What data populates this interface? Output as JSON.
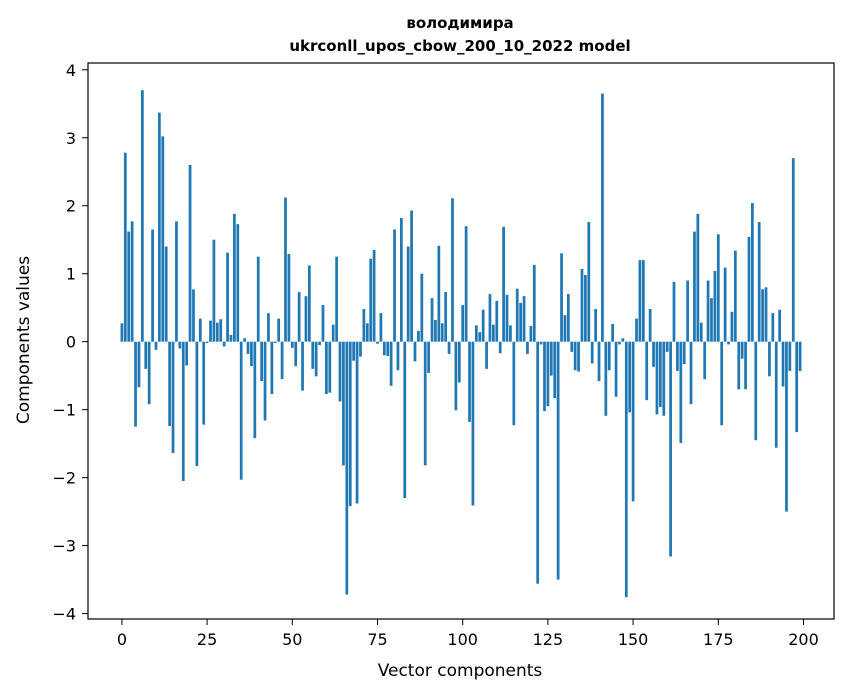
{
  "chart_data": {
    "type": "bar",
    "title_lines": [
      "володимира",
      "ukrconll_upos_cbow_200_10_2022 model"
    ],
    "xlabel": "Vector components",
    "ylabel": "Components values",
    "xlim": [
      -9.95,
      208.95
    ],
    "ylim": [
      -4.08,
      4.1
    ],
    "xticks": [
      0,
      25,
      50,
      75,
      100,
      125,
      150,
      175,
      200
    ],
    "xtick_labels": [
      "0",
      "25",
      "50",
      "75",
      "100",
      "125",
      "150",
      "175",
      "200"
    ],
    "yticks": [
      -4,
      -3,
      -2,
      -1,
      0,
      1,
      2,
      3,
      4
    ],
    "ytick_labels": [
      "−4",
      "−3",
      "−2",
      "−1",
      "0",
      "1",
      "2",
      "3",
      "4"
    ],
    "grid": false,
    "bar_color": "#1f77b4",
    "x": [
      0,
      1,
      2,
      3,
      4,
      5,
      6,
      7,
      8,
      9,
      10,
      11,
      12,
      13,
      14,
      15,
      16,
      17,
      18,
      19,
      20,
      21,
      22,
      23,
      24,
      25,
      26,
      27,
      28,
      29,
      30,
      31,
      32,
      33,
      34,
      35,
      36,
      37,
      38,
      39,
      40,
      41,
      42,
      43,
      44,
      45,
      46,
      47,
      48,
      49,
      50,
      51,
      52,
      53,
      54,
      55,
      56,
      57,
      58,
      59,
      60,
      61,
      62,
      63,
      64,
      65,
      66,
      67,
      68,
      69,
      70,
      71,
      72,
      73,
      74,
      75,
      76,
      77,
      78,
      79,
      80,
      81,
      82,
      83,
      84,
      85,
      86,
      87,
      88,
      89,
      90,
      91,
      92,
      93,
      94,
      95,
      96,
      97,
      98,
      99,
      100,
      101,
      102,
      103,
      104,
      105,
      106,
      107,
      108,
      109,
      110,
      111,
      112,
      113,
      114,
      115,
      116,
      117,
      118,
      119,
      120,
      121,
      122,
      123,
      124,
      125,
      126,
      127,
      128,
      129,
      130,
      131,
      132,
      133,
      134,
      135,
      136,
      137,
      138,
      139,
      140,
      141,
      142,
      143,
      144,
      145,
      146,
      147,
      148,
      149,
      150,
      151,
      152,
      153,
      154,
      155,
      156,
      157,
      158,
      159,
      160,
      161,
      162,
      163,
      164,
      165,
      166,
      167,
      168,
      169,
      170,
      171,
      172,
      173,
      174,
      175,
      176,
      177,
      178,
      179,
      180,
      181,
      182,
      183,
      184,
      185,
      186,
      187,
      188,
      189,
      190,
      191,
      192,
      193,
      194,
      195,
      196,
      197,
      198,
      199
    ],
    "values": [
      0.27,
      2.78,
      1.62,
      1.77,
      -1.25,
      -0.67,
      3.7,
      -0.4,
      -0.92,
      1.65,
      -0.12,
      3.37,
      3.02,
      1.4,
      -1.24,
      -1.64,
      1.77,
      -0.1,
      -2.05,
      -0.35,
      2.6,
      0.77,
      -1.83,
      0.34,
      -1.22,
      -0.02,
      0.31,
      1.5,
      0.28,
      0.33,
      -0.07,
      1.31,
      0.1,
      1.88,
      1.73,
      -2.03,
      0.05,
      -0.18,
      -0.36,
      -1.42,
      1.25,
      -0.58,
      -1.16,
      0.42,
      -0.77,
      -0.02,
      0.34,
      -0.55,
      2.12,
      1.29,
      -0.09,
      -0.36,
      0.73,
      -0.72,
      0.67,
      1.12,
      -0.4,
      -0.51,
      -0.05,
      0.54,
      -0.77,
      -0.75,
      0.25,
      1.25,
      -0.88,
      -1.82,
      -3.72,
      -2.42,
      -0.28,
      -2.38,
      -0.22,
      0.48,
      0.27,
      1.22,
      1.35,
      -0.03,
      0.42,
      -0.2,
      -0.21,
      -0.65,
      1.65,
      -0.42,
      1.82,
      -2.3,
      1.4,
      1.93,
      -0.29,
      0.16,
      1.0,
      -1.82,
      -0.46,
      0.64,
      0.32,
      1.41,
      0.27,
      0.73,
      -0.18,
      2.11,
      -1.01,
      -0.6,
      0.54,
      1.7,
      -1.18,
      -2.41,
      0.24,
      0.14,
      0.47,
      -0.4,
      0.7,
      0.25,
      0.6,
      -0.17,
      1.69,
      0.69,
      0.24,
      -1.23,
      0.78,
      0.57,
      0.67,
      -0.18,
      0.23,
      1.13,
      -3.56,
      -0.04,
      -1.02,
      -0.95,
      -0.5,
      -0.83,
      -3.5,
      1.3,
      0.39,
      0.7,
      -0.15,
      -0.42,
      -0.44,
      1.07,
      0.98,
      1.76,
      -0.32,
      0.48,
      -0.58,
      3.65,
      -1.09,
      -0.42,
      0.26,
      -0.81,
      -0.04,
      0.05,
      -3.76,
      -1.04,
      -2.35,
      0.34,
      1.2,
      1.2,
      -0.86,
      0.48,
      -0.37,
      -1.07,
      -0.96,
      -1.09,
      -0.15,
      -3.16,
      0.88,
      -0.43,
      -1.49,
      -0.33,
      0.9,
      -0.92,
      1.62,
      1.88,
      0.28,
      -0.55,
      0.9,
      0.64,
      1.04,
      1.58,
      -1.23,
      1.09,
      -0.04,
      0.44,
      1.34,
      -0.7,
      -0.25,
      -0.7,
      1.54,
      2.04,
      -1.45,
      1.76,
      0.77,
      0.8,
      -0.51,
      0.42,
      -1.56,
      0.47,
      -0.66,
      -2.5,
      -0.43,
      2.7,
      -1.33,
      -0.43
    ]
  }
}
